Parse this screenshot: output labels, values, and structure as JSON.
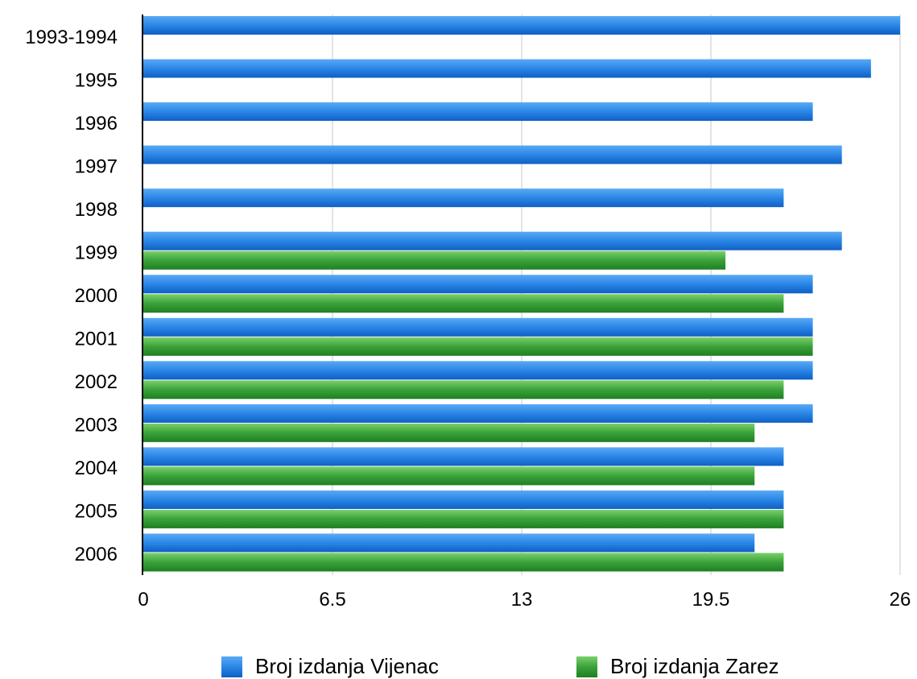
{
  "chart_data": {
    "type": "bar",
    "orientation": "horizontal",
    "categories": [
      "1993-1994",
      "1995",
      "1996",
      "1997",
      "1998",
      "1999",
      "2000",
      "2001",
      "2002",
      "2003",
      "2004",
      "2005",
      "2006"
    ],
    "series": [
      {
        "name": "Broj izdanja Vijenac",
        "color": "#1f7ae0",
        "values": [
          26,
          25,
          23,
          24,
          22,
          24,
          23,
          23,
          23,
          23,
          22,
          22,
          21
        ]
      },
      {
        "name": "Broj izdanja Zarez",
        "color": "#2e9e2e",
        "values": [
          null,
          null,
          null,
          null,
          null,
          20,
          22,
          23,
          22,
          21,
          21,
          22,
          22
        ]
      }
    ],
    "xlim": [
      0,
      26
    ],
    "xticks": [
      "0",
      "6.5",
      "13",
      "19.5",
      "26"
    ],
    "xtick_values": [
      0,
      6.5,
      13,
      19.5,
      26
    ],
    "grid": true,
    "legend_position": "bottom"
  }
}
